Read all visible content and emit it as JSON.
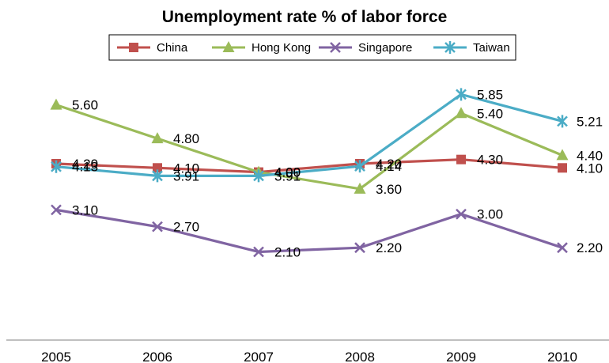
{
  "chart_data": {
    "type": "line",
    "title": "Unemployment rate % of labor force",
    "xlabel": "",
    "ylabel": "",
    "categories": [
      "2005",
      "2006",
      "2007",
      "2008",
      "2009",
      "2010"
    ],
    "ylim": [
      0,
      7
    ],
    "grid": false,
    "legend": "top",
    "series": [
      {
        "name": "China",
        "color": "#C0504D",
        "marker": "square",
        "values": [
          4.2,
          4.1,
          4.0,
          4.2,
          4.3,
          4.1
        ],
        "labels": [
          "4.20",
          "4.10",
          "4.00",
          "4.20",
          "4.30",
          "4.10"
        ]
      },
      {
        "name": "Hong Kong",
        "color": "#9BBB59",
        "marker": "triangle",
        "values": [
          5.6,
          4.8,
          4.0,
          3.6,
          5.4,
          4.4
        ],
        "labels": [
          "5.60",
          "4.80",
          "4.00",
          "3.60",
          "5.40",
          "4.40"
        ]
      },
      {
        "name": "Singapore",
        "color": "#8064A2",
        "marker": "x",
        "values": [
          3.1,
          2.7,
          2.1,
          2.2,
          3.0,
          2.2
        ],
        "labels": [
          "3.10",
          "2.70",
          "2.10",
          "2.20",
          "3.00",
          "2.20"
        ]
      },
      {
        "name": "Taiwan",
        "color": "#4BACC6",
        "marker": "star",
        "values": [
          4.13,
          3.91,
          3.91,
          4.14,
          5.85,
          5.21
        ],
        "labels": [
          "4.13",
          "3.91",
          "3.91",
          "4.14",
          "5.85",
          "5.21"
        ]
      }
    ]
  }
}
